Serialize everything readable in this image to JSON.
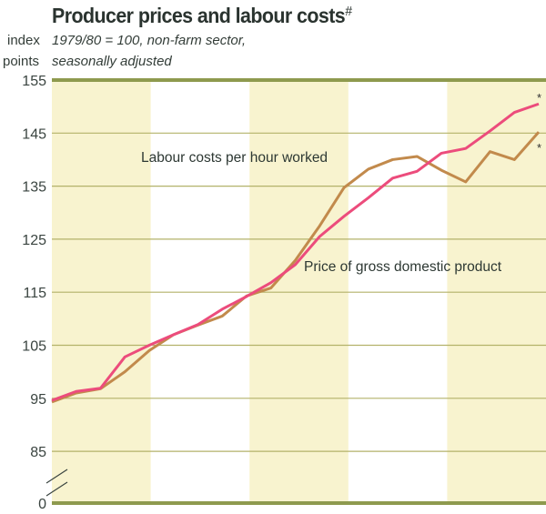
{
  "chart_data": {
    "type": "line",
    "title": "Producer prices and labour costs",
    "title_mark": "#",
    "ylabel_line1": "index",
    "ylabel_line2": "points",
    "subtitle_line1": "1979/80 = 100, non-farm sector,",
    "subtitle_line2": "seasonally adjusted",
    "xlabel": "",
    "x": [
      0,
      1,
      2,
      3,
      4,
      5,
      6,
      7,
      8,
      9,
      10,
      11,
      12,
      13,
      14,
      15,
      16,
      17,
      18,
      19,
      20
    ],
    "x_unit": "quarter index",
    "shaded_bands": 5,
    "yticks": [
      "155",
      "145",
      "135",
      "125",
      "115",
      "105",
      "95",
      "85",
      "0"
    ],
    "ytick_values": [
      155,
      145,
      135,
      125,
      115,
      105,
      95,
      85,
      0
    ],
    "ylim": [
      85,
      155
    ],
    "axis_break": true,
    "grid": true,
    "series": [
      {
        "name": "Labour costs per hour worked",
        "color": "#c28a4c",
        "end_marker": "*",
        "values": [
          94.3,
          96.0,
          96.8,
          100.0,
          104.0,
          107.0,
          108.8,
          110.5,
          114.3,
          115.8,
          121.0,
          127.5,
          134.7,
          138.2,
          140.0,
          140.6,
          138.0,
          135.8,
          141.5,
          140.0,
          145.2
        ]
      },
      {
        "name": "Price of gross domestic product",
        "color": "#ec4c7c",
        "end_marker": "*",
        "values": [
          94.6,
          96.3,
          96.9,
          102.8,
          105.0,
          107.0,
          108.9,
          111.8,
          114.2,
          116.8,
          120.2,
          125.5,
          129.3,
          132.8,
          136.5,
          137.8,
          141.2,
          142.1,
          145.4,
          148.9,
          150.5
        ]
      }
    ]
  }
}
